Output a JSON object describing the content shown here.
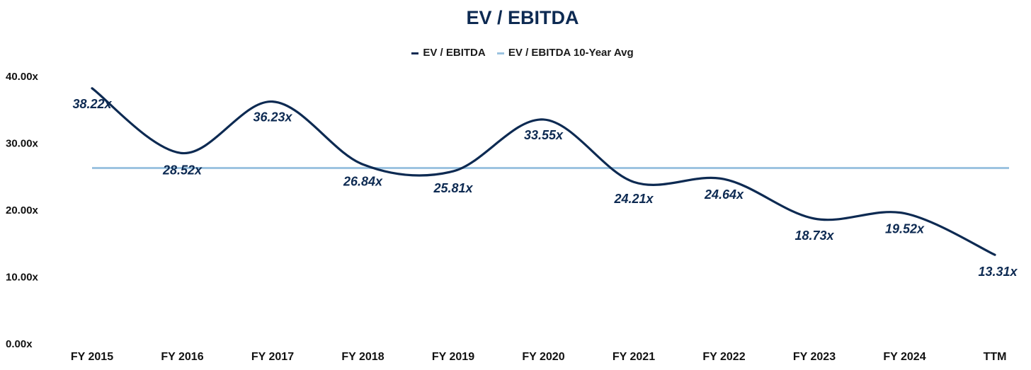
{
  "chart_data": {
    "type": "line",
    "title": "EV / EBITDA",
    "categories": [
      "FY 2015",
      "FY 2016",
      "FY 2017",
      "FY 2018",
      "FY 2019",
      "FY 2020",
      "FY 2021",
      "FY 2022",
      "FY 2023",
      "FY 2024",
      "TTM"
    ],
    "series": [
      {
        "name": "EV / EBITDA",
        "color": "#0d2a52",
        "values": [
          38.22,
          28.52,
          36.23,
          26.84,
          25.81,
          33.55,
          24.21,
          24.64,
          18.73,
          19.52,
          13.31
        ],
        "labels": [
          "38.22x",
          "28.52x",
          "36.23x",
          "26.84x",
          "25.81x",
          "33.55x",
          "24.21x",
          "24.64x",
          "18.73x",
          "19.52x",
          "13.31x"
        ]
      },
      {
        "name": "EV / EBITDA 10-Year Avg",
        "color": "#9cc3e0",
        "values": [
          26.3,
          26.3,
          26.3,
          26.3,
          26.3,
          26.3,
          26.3,
          26.3,
          26.3,
          26.3,
          26.3
        ]
      }
    ],
    "yticks": [
      "0.00x",
      "10.00x",
      "20.00x",
      "30.00x",
      "40.00x"
    ],
    "ylim": [
      0,
      40
    ],
    "legend": "top-center",
    "grid": false
  }
}
